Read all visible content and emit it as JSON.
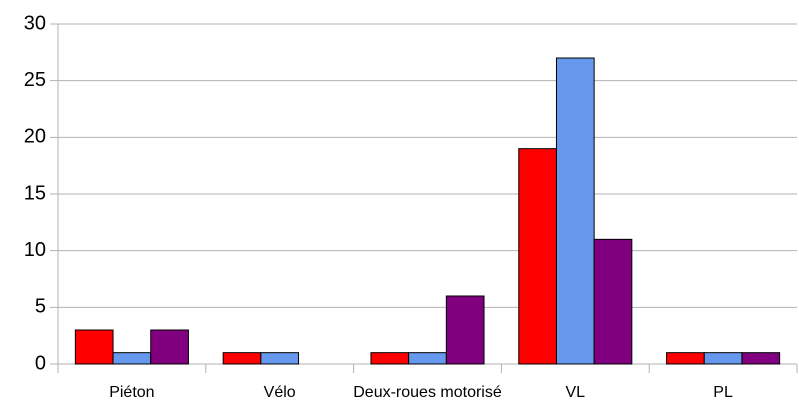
{
  "chart_data": {
    "type": "bar",
    "categories": [
      "Piéton",
      "Vélo",
      "Deux-roues motorisé",
      "VL",
      "PL"
    ],
    "series": [
      {
        "color": "#ff0000",
        "values": [
          3,
          1,
          1,
          19,
          1
        ]
      },
      {
        "color": "#6699ee",
        "values": [
          1,
          1,
          1,
          27,
          1
        ]
      },
      {
        "color": "#800080",
        "values": [
          3,
          0,
          6,
          11,
          1
        ]
      }
    ],
    "ylim": [
      0,
      30
    ],
    "yticks": [
      0,
      5,
      10,
      15,
      20,
      25,
      30
    ],
    "grid": true
  }
}
